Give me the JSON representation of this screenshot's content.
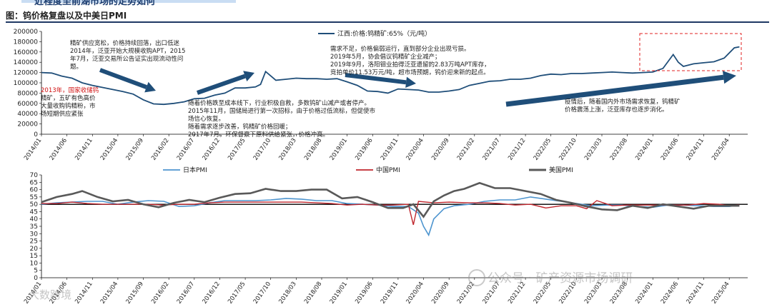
{
  "header": {
    "top_title_fragment": "近程度至前湖市场的走势如何",
    "figure_title": "图：钨价格复盘以及中美日PMI"
  },
  "chart_data": [
    {
      "type": "line",
      "legend": "江西:价格:钨精矿:65%（元/吨）",
      "ylim": [
        0,
        200000
      ],
      "yticks": [
        0,
        10000,
        20000,
        30000,
        40000,
        50000,
        60000,
        70000,
        80000,
        90000,
        100000,
        110000,
        120000,
        130000,
        140000,
        150000,
        160000,
        170000,
        180000,
        190000,
        200000
      ],
      "x_tick_labels": [
        "2014/01",
        "2014/06",
        "2014/11",
        "2015/04",
        "2015/09",
        "2016/02",
        "2016/07",
        "2016/12",
        "2017/05",
        "2017/10",
        "2018/03",
        "2018/08",
        "2019/01",
        "2019/06",
        "2019/11",
        "2020/04",
        "2020/09",
        "2021/02",
        "2021/07",
        "2021/12",
        "2022/05",
        "2022/10",
        "2023/03",
        "2023/08",
        "2024/01",
        "2024/06",
        "2024/11",
        "2025/04"
      ],
      "color": "#1f4e79",
      "series": [
        {
          "name": "江西:价格:钨精矿:65%（元/吨）",
          "points": [
            [
              "2014/01",
              120000
            ],
            [
              "2014/03",
              119000
            ],
            [
              "2014/05",
              113000
            ],
            [
              "2014/07",
              109000
            ],
            [
              "2014/09",
              100000
            ],
            [
              "2014/11",
              95000
            ],
            [
              "2015/01",
              91000
            ],
            [
              "2015/03",
              87000
            ],
            [
              "2015/05",
              83000
            ],
            [
              "2015/07",
              78000
            ],
            [
              "2015/09",
              67000
            ],
            [
              "2015/11",
              59000
            ],
            [
              "2016/01",
              58000
            ],
            [
              "2016/03",
              60000
            ],
            [
              "2016/05",
              63000
            ],
            [
              "2016/07",
              69000
            ],
            [
              "2016/09",
              70000
            ],
            [
              "2016/11",
              76000
            ],
            [
              "2017/01",
              80000
            ],
            [
              "2017/03",
              90000
            ],
            [
              "2017/05",
              90000
            ],
            [
              "2017/07",
              92000
            ],
            [
              "2017/08",
              97000
            ],
            [
              "2017/09",
              122000
            ],
            [
              "2017/11",
              105000
            ],
            [
              "2018/01",
              107000
            ],
            [
              "2018/03",
              109000
            ],
            [
              "2018/05",
              108000
            ],
            [
              "2018/07",
              108000
            ],
            [
              "2018/09",
              107000
            ],
            [
              "2018/11",
              108000
            ],
            [
              "2019/01",
              102000
            ],
            [
              "2019/03",
              95000
            ],
            [
              "2019/05",
              84000
            ],
            [
              "2019/07",
              83000
            ],
            [
              "2019/09",
              80000
            ],
            [
              "2019/11",
              88000
            ],
            [
              "2020/01",
              87000
            ],
            [
              "2020/03",
              86000
            ],
            [
              "2020/05",
              82000
            ],
            [
              "2020/07",
              82000
            ],
            [
              "2020/09",
              84000
            ],
            [
              "2020/11",
              87000
            ],
            [
              "2021/01",
              95000
            ],
            [
              "2021/03",
              99000
            ],
            [
              "2021/05",
              103000
            ],
            [
              "2021/07",
              104000
            ],
            [
              "2021/09",
              107000
            ],
            [
              "2021/11",
              107000
            ],
            [
              "2022/01",
              109000
            ],
            [
              "2022/03",
              114000
            ],
            [
              "2022/05",
              117000
            ],
            [
              "2022/07",
              116000
            ],
            [
              "2022/09",
              118000
            ],
            [
              "2022/11",
              118000
            ],
            [
              "2023/01",
              119000
            ],
            [
              "2023/03",
              120000
            ],
            [
              "2023/05",
              121000
            ],
            [
              "2023/07",
              120000
            ],
            [
              "2023/09",
              119000
            ],
            [
              "2023/11",
              120000
            ],
            [
              "2024/01",
              121000
            ],
            [
              "2024/03",
              128000
            ],
            [
              "2024/05",
              155000
            ],
            [
              "2024/06",
              140000
            ],
            [
              "2024/07",
              132000
            ],
            [
              "2024/09",
              137000
            ],
            [
              "2024/11",
              139000
            ],
            [
              "2025/01",
              141000
            ],
            [
              "2025/03",
              148000
            ],
            [
              "2025/05",
              168000
            ],
            [
              "2025/06",
              170000
            ]
          ]
        }
      ]
    },
    {
      "type": "line",
      "ylim": [
        0,
        70
      ],
      "yticks": [
        0,
        5,
        10,
        15,
        20,
        25,
        30,
        35,
        40,
        45,
        50,
        55,
        60,
        65,
        70
      ],
      "reference_line": 50,
      "x_tick_labels": [
        "2014/01",
        "2014/06",
        "2014/11",
        "2015/04",
        "2015/09",
        "2016/02",
        "2016/07",
        "2016/12",
        "2017/05",
        "2017/10",
        "2018/03",
        "2018/08",
        "2019/01",
        "2019/06",
        "2019/11",
        "2020/04",
        "2020/09",
        "2021/02",
        "2021/07",
        "2021/12",
        "2022/05",
        "2022/10",
        "2023/03",
        "2023/08",
        "2024/01",
        "2024/06",
        "2024/11",
        "2025/04"
      ],
      "series": [
        {
          "name": "日本PMI",
          "color": "#4e95cf",
          "points": [
            [
              "2014/01",
              50
            ],
            [
              "2014/04",
              51
            ],
            [
              "2014/07",
              51.5
            ],
            [
              "2014/10",
              52
            ],
            [
              "2015/01",
              52
            ],
            [
              "2015/04",
              50
            ],
            [
              "2015/07",
              51.5
            ],
            [
              "2015/10",
              52.5
            ],
            [
              "2016/01",
              52
            ],
            [
              "2016/04",
              48.5
            ],
            [
              "2016/07",
              49
            ],
            [
              "2016/10",
              51
            ],
            [
              "2017/01",
              52.5
            ],
            [
              "2017/04",
              52.5
            ],
            [
              "2017/07",
              52.5
            ],
            [
              "2017/10",
              53
            ],
            [
              "2018/01",
              54
            ],
            [
              "2018/04",
              53.5
            ],
            [
              "2018/07",
              52.5
            ],
            [
              "2018/10",
              52.5
            ],
            [
              "2019/01",
              50.5
            ],
            [
              "2019/04",
              50
            ],
            [
              "2019/07",
              49.5
            ],
            [
              "2019/10",
              48.5
            ],
            [
              "2020/01",
              48.5
            ],
            [
              "2020/03",
              44
            ],
            [
              "2020/04",
              35
            ],
            [
              "2020/05",
              29
            ],
            [
              "2020/06",
              40
            ],
            [
              "2020/08",
              47
            ],
            [
              "2020/10",
              49
            ],
            [
              "2021/01",
              50
            ],
            [
              "2021/04",
              52
            ],
            [
              "2021/07",
              53
            ],
            [
              "2021/10",
              53
            ],
            [
              "2022/01",
              55
            ],
            [
              "2022/04",
              53.5
            ],
            [
              "2022/07",
              52
            ],
            [
              "2022/10",
              50.5
            ],
            [
              "2023/01",
              49
            ],
            [
              "2023/04",
              49.5
            ],
            [
              "2023/07",
              49.5
            ],
            [
              "2023/10",
              48.5
            ],
            [
              "2024/01",
              48
            ],
            [
              "2024/04",
              49.5
            ],
            [
              "2024/07",
              49.5
            ],
            [
              "2024/10",
              49
            ],
            [
              "2025/01",
              48.5
            ],
            [
              "2025/04",
              48.5
            ],
            [
              "2025/06",
              49.5
            ]
          ]
        },
        {
          "name": "中国PMI",
          "color": "#c0262d",
          "points": [
            [
              "2014/01",
              50.5
            ],
            [
              "2014/04",
              50.5
            ],
            [
              "2014/07",
              51.5
            ],
            [
              "2014/10",
              50.5
            ],
            [
              "2015/01",
              50
            ],
            [
              "2015/04",
              50
            ],
            [
              "2015/07",
              50
            ],
            [
              "2015/10",
              50
            ],
            [
              "2016/01",
              49.5
            ],
            [
              "2016/04",
              50
            ],
            [
              "2016/07",
              50
            ],
            [
              "2016/10",
              51
            ],
            [
              "2017/01",
              51.5
            ],
            [
              "2017/04",
              51.5
            ],
            [
              "2017/07",
              51.5
            ],
            [
              "2017/10",
              51.5
            ],
            [
              "2018/01",
              51.5
            ],
            [
              "2018/04",
              51.5
            ],
            [
              "2018/07",
              51
            ],
            [
              "2018/10",
              50.5
            ],
            [
              "2019/01",
              49.5
            ],
            [
              "2019/04",
              50
            ],
            [
              "2019/07",
              49.5
            ],
            [
              "2019/10",
              49.5
            ],
            [
              "2020/01",
              50
            ],
            [
              "2020/02",
              36
            ],
            [
              "2020/03",
              52
            ],
            [
              "2020/06",
              51
            ],
            [
              "2020/09",
              51.5
            ],
            [
              "2021/01",
              51
            ],
            [
              "2021/04",
              51
            ],
            [
              "2021/07",
              50.5
            ],
            [
              "2021/10",
              49.5
            ],
            [
              "2022/01",
              50
            ],
            [
              "2022/04",
              47.5
            ],
            [
              "2022/07",
              49
            ],
            [
              "2022/10",
              49
            ],
            [
              "2022/12",
              47
            ],
            [
              "2023/02",
              52.5
            ],
            [
              "2023/05",
              49
            ],
            [
              "2023/08",
              49.5
            ],
            [
              "2023/11",
              49.5
            ],
            [
              "2024/02",
              49.5
            ],
            [
              "2024/05",
              49.5
            ],
            [
              "2024/08",
              49.5
            ],
            [
              "2024/11",
              50.5
            ],
            [
              "2025/02",
              50
            ],
            [
              "2025/04",
              49
            ],
            [
              "2025/06",
              49.5
            ]
          ]
        },
        {
          "name": "美国PMI",
          "color": "#595959",
          "points": [
            [
              "2014/01",
              51.5
            ],
            [
              "2014/04",
              55
            ],
            [
              "2014/07",
              57
            ],
            [
              "2014/09",
              59
            ],
            [
              "2014/12",
              55
            ],
            [
              "2015/03",
              52
            ],
            [
              "2015/06",
              53
            ],
            [
              "2015/09",
              50
            ],
            [
              "2015/12",
              48
            ],
            [
              "2016/03",
              51
            ],
            [
              "2016/06",
              53
            ],
            [
              "2016/09",
              51.5
            ],
            [
              "2016/12",
              54.5
            ],
            [
              "2017/03",
              57
            ],
            [
              "2017/06",
              57.5
            ],
            [
              "2017/09",
              60.5
            ],
            [
              "2017/12",
              59
            ],
            [
              "2018/03",
              59
            ],
            [
              "2018/06",
              60
            ],
            [
              "2018/09",
              60
            ],
            [
              "2018/12",
              54
            ],
            [
              "2019/03",
              55
            ],
            [
              "2019/06",
              51.5
            ],
            [
              "2019/09",
              47.5
            ],
            [
              "2019/12",
              47.5
            ],
            [
              "2020/02",
              50
            ],
            [
              "2020/04",
              41.5
            ],
            [
              "2020/06",
              52
            ],
            [
              "2020/08",
              56
            ],
            [
              "2020/10",
              59
            ],
            [
              "2020/12",
              60.5
            ],
            [
              "2021/03",
              64.5
            ],
            [
              "2021/06",
              61
            ],
            [
              "2021/09",
              61
            ],
            [
              "2021/12",
              59
            ],
            [
              "2022/03",
              57
            ],
            [
              "2022/06",
              53
            ],
            [
              "2022/09",
              51
            ],
            [
              "2022/12",
              48.5
            ],
            [
              "2023/03",
              46.5
            ],
            [
              "2023/06",
              46
            ],
            [
              "2023/09",
              49
            ],
            [
              "2023/12",
              47.5
            ],
            [
              "2024/03",
              50
            ],
            [
              "2024/06",
              48.5
            ],
            [
              "2024/09",
              47
            ],
            [
              "2024/12",
              49
            ],
            [
              "2025/03",
              49
            ],
            [
              "2025/06",
              49
            ]
          ]
        }
      ]
    }
  ],
  "annotations": {
    "a1": "精矿供应宽松，价格持续回落，出口低迷\n2014年，泛亚开始大规模收购APT，2015\n年7月，泛亚交易所公告证实出现流动性问\n题。",
    "a2_red": "2013年，国家收储钨",
    "a2": "精矿，五矿有色高价\n大量收购钨精粉，市\n场短期供应紧张",
    "a3": "随着价格跌至成本线下，行业积极自救，多数钨矿山减产或者停产。\n2015年11月，国储局进行第一次招标，由于价格过低流标，但促使市\n场信心恢复。\n随着需求逐步改善，钨精矿价格回暖；\n2017年7月，环保督察下原料供给紧张，价格冲高。",
    "a4": "需求不足，价格偏弱运行，直到部分企业出现亏损。\n2019年5月，协会倡议钨精矿企业减产；\n2019年9月，洛阳钼业拍得泛亚遗留的2.83万吨APT库存，\n竞拍单价11.53万元/吨，超市场预期，钨价迎来新的起点。",
    "a5": "疫情后，随着国内外市场需求恢复，钨精矿\n价格震荡上涨，泛亚库存也逐步消化。"
  },
  "watermarks": {
    "account": "公众号 · 矿产资源市场调研",
    "brand": "大数跨境"
  }
}
